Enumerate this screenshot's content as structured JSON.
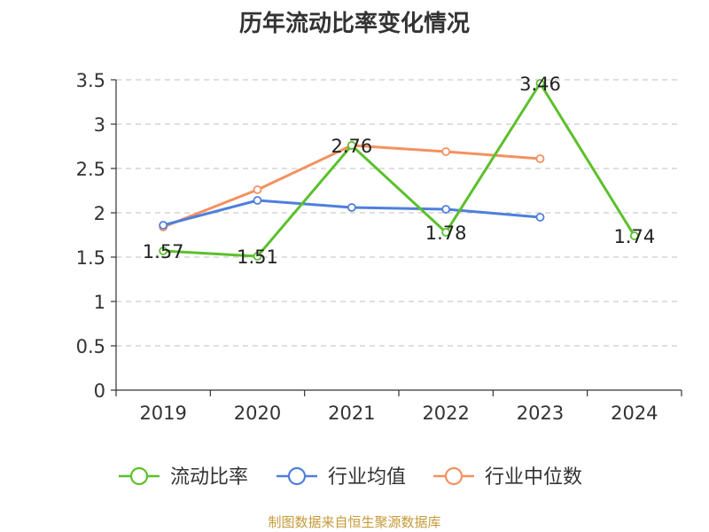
{
  "chart_data": {
    "type": "line",
    "title": "历年流动比率变化情况",
    "categories": [
      "2019",
      "2020",
      "2021",
      "2022",
      "2023",
      "2024"
    ],
    "ylim": [
      0,
      3.5
    ],
    "yticks": [
      "0",
      "0.5",
      "1",
      "1.5",
      "2",
      "2.5",
      "3",
      "3.5"
    ],
    "grid": true,
    "legend_position": "bottom",
    "series": [
      {
        "name": "流动比率",
        "color": "#5cc02c",
        "values": [
          1.57,
          1.51,
          2.76,
          1.78,
          3.46,
          1.74
        ],
        "labels": [
          "1.57",
          "1.51",
          "2.76",
          "1.78",
          "3.46",
          "1.74"
        ]
      },
      {
        "name": "行业均值",
        "color": "#4f7fdc",
        "values": [
          1.86,
          2.14,
          2.06,
          2.04,
          1.95,
          null
        ]
      },
      {
        "name": "行业中位数",
        "color": "#f39160",
        "values": [
          1.84,
          2.26,
          2.76,
          2.69,
          2.61,
          null
        ]
      }
    ]
  },
  "source": "制图数据来自恒生聚源数据库"
}
